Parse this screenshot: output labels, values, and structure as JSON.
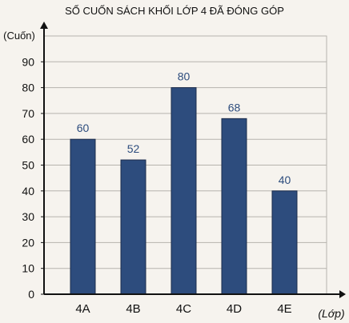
{
  "chart_data": {
    "type": "bar",
    "title": "SỐ CUỐN SÁCH KHỐI LỚP 4 ĐÃ ĐÓNG GÓP",
    "xlabel": "(Lớp)",
    "ylabel": "(Cuốn)",
    "categories": [
      "4A",
      "4B",
      "4C",
      "4D",
      "4E"
    ],
    "values": [
      60,
      52,
      80,
      68,
      40
    ],
    "data_labels": [
      "60",
      "52",
      "80",
      "68",
      "40"
    ],
    "y_ticks": [
      0,
      10,
      20,
      30,
      40,
      50,
      60,
      70,
      80,
      90
    ],
    "y_tick_labels": [
      "0",
      "10",
      "20",
      "30",
      "40",
      "50",
      "60",
      "70",
      "80",
      "90"
    ],
    "ylim": [
      0,
      100
    ],
    "grid": true,
    "colors": {
      "bar": "#2d4c7d",
      "bar_edge": "#1c2c4c",
      "grid": "#b6b3ad",
      "axis": "#111111",
      "text": "#111111",
      "data_label": "#2d4c7d",
      "background": "#f6f3ee"
    }
  }
}
